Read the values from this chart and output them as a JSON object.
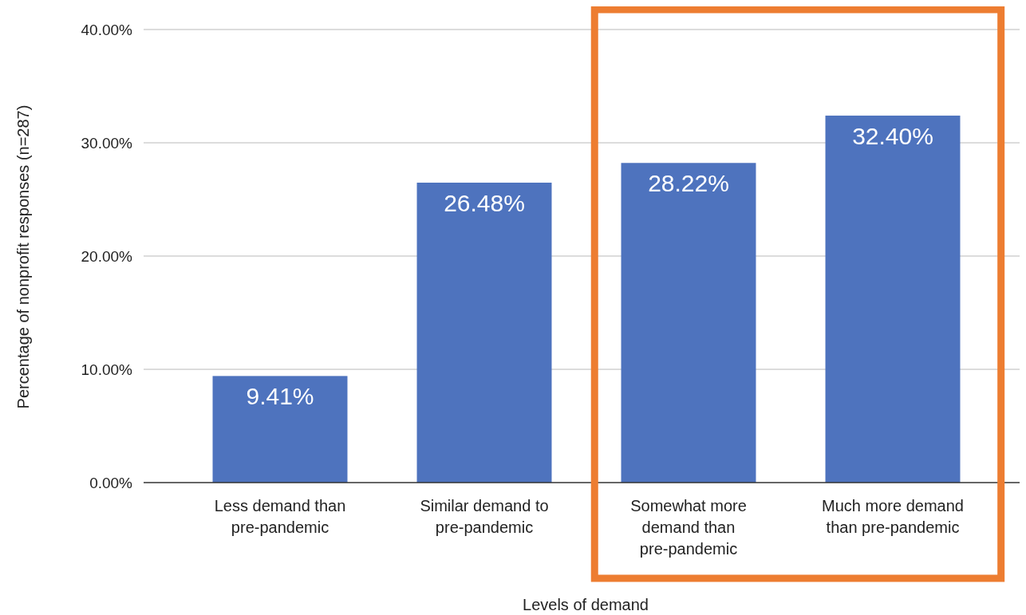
{
  "chart_data": {
    "type": "bar",
    "xlabel": "Levels of demand",
    "ylabel": "Percentage of nonprofit responses (n=287)",
    "categories": [
      "Less demand than pre-pandemic",
      "Similar demand to pre-pandemic",
      "Somewhat more demand than pre-pandemic",
      "Much more demand than pre-pandemic"
    ],
    "values": [
      9.41,
      26.48,
      28.22,
      32.4
    ],
    "value_labels": [
      "9.41%",
      "26.48%",
      "28.22%",
      "32.40%"
    ],
    "color": "#4e73be",
    "ylim": [
      0,
      40
    ],
    "yticks": [
      {
        "value": 0,
        "label": "0.00%"
      },
      {
        "value": 10,
        "label": "10.00%"
      },
      {
        "value": 20,
        "label": "20.00%"
      },
      {
        "value": 30,
        "label": "30.00%"
      },
      {
        "value": 40,
        "label": "40.00%"
      }
    ],
    "grid": "y"
  }
}
